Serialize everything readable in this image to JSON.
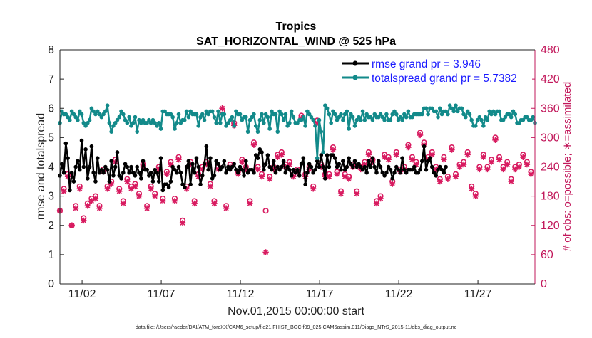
{
  "chart_data": {
    "type": "line",
    "title": "Tropics",
    "subtitle": "SAT_HORIZONTAL_WIND @ 525 hPa",
    "xlabel": "Nov.01,2015 00:00:00 start",
    "ylabel": "rmse and totalspread",
    "y2label": "# of obs: o=possible; ∗=assimilated",
    "footer": "data file: /Users/raeder/DAI/ATM_forcXX/CAM6_setup/f.e21.FHIST_BGC.f09_025.CAM6assim.011/Diags_NTrS_2015-11/obs_diag_output.nc",
    "xlim": [
      0.6,
      30.6
    ],
    "ylim": [
      0,
      8
    ],
    "y2lim": [
      0,
      480
    ],
    "xticks": [
      2,
      7,
      12,
      17,
      22,
      27
    ],
    "xtick_labels": [
      "11/02",
      "11/07",
      "11/12",
      "11/17",
      "11/22",
      "11/27"
    ],
    "yticks": [
      0,
      1,
      2,
      3,
      4,
      5,
      6,
      7,
      8
    ],
    "y2ticks": [
      0,
      60,
      120,
      180,
      240,
      300,
      360,
      420,
      480
    ],
    "legend_position": "top-right",
    "series": [
      {
        "name": "rmse grand pr = 3.946",
        "color": "#000000",
        "axis": "left",
        "x_start": 0.6,
        "x_step": 0.125,
        "values": [
          3.7,
          4.1,
          3.8,
          4.8,
          4.3,
          3.2,
          3.8,
          3.5,
          4.0,
          4.2,
          3.9,
          4.9,
          4.0,
          4.6,
          3.6,
          4.0,
          4.7,
          3.8,
          3.5,
          4.3,
          3.8,
          3.9,
          3.8,
          4.0,
          3.9,
          3.5,
          4.2,
          3.7,
          4.0,
          4.5,
          3.7,
          3.6,
          3.8,
          4.1,
          4.0,
          3.8,
          4.0,
          3.8,
          3.7,
          4.0,
          3.8,
          3.6,
          4.2,
          3.9,
          3.9,
          3.7,
          3.8,
          3.5,
          3.9,
          3.8,
          3.5,
          4.3,
          3.2,
          3.4,
          3.4,
          3.3,
          3.5,
          4.0,
          3.9,
          3.8,
          4.0,
          3.8,
          3.4,
          3.3,
          4.0,
          4.2,
          3.4,
          4.1,
          3.8,
          4.3,
          4.0,
          3.4,
          3.7,
          4.1,
          4.7,
          3.9,
          4.3,
          3.6,
          3.7,
          4.2,
          4.1,
          3.9,
          4.0,
          4.2,
          3.8,
          4.0,
          3.9,
          4.0,
          4.1,
          3.9,
          3.8,
          4.0,
          3.9,
          3.7,
          4.2,
          3.8,
          3.9,
          3.9,
          3.8,
          4.4,
          4.3,
          4.6,
          4.5,
          3.9,
          4.1,
          4.4,
          4.0,
          3.9,
          4.2,
          3.8,
          4.0,
          3.9,
          4.0,
          4.2,
          3.8,
          4.0,
          3.9,
          3.7,
          3.9,
          3.8,
          3.9,
          3.7,
          4.1,
          4.3,
          3.4,
          3.8,
          4.1,
          4.0,
          3.8,
          3.9,
          4.2,
          4.0,
          4.4,
          4.0,
          3.6,
          4.4,
          4.0,
          4.4,
          4.4,
          4.3,
          4.0,
          4.1,
          3.9,
          4.2,
          3.9,
          4.0,
          4.3,
          4.1,
          4.0,
          4.2,
          4.0,
          4.1,
          4.0,
          3.9,
          4.0,
          3.8,
          4.2,
          4.0,
          4.3,
          4.0,
          3.8,
          4.2,
          4.0,
          3.8,
          3.7,
          3.8,
          4.0,
          3.9,
          3.6,
          3.8,
          4.0,
          3.9,
          3.8,
          4.3,
          3.9,
          3.8,
          3.9,
          3.9,
          3.9,
          4.0,
          3.8,
          3.8,
          3.9,
          4.2,
          4.7,
          3.9,
          4.2,
          4.3,
          4.0,
          3.8,
          3.7,
          3.9,
          4.0,
          3.9,
          3.8,
          4.0
        ]
      },
      {
        "name": "totalspread grand pr = 5.7382",
        "color": "#128a8a",
        "axis": "left",
        "x_start": 0.6,
        "x_step": 0.125,
        "values": [
          5.5,
          5.9,
          5.8,
          5.8,
          5.7,
          5.6,
          5.9,
          5.8,
          5.7,
          5.6,
          5.9,
          5.8,
          5.5,
          5.4,
          5.5,
          5.6,
          6.0,
          5.9,
          5.8,
          5.9,
          5.8,
          5.7,
          5.8,
          5.9,
          6.1,
          5.5,
          5.2,
          5.4,
          5.5,
          5.6,
          5.7,
          5.9,
          5.8,
          5.6,
          5.5,
          5.7,
          5.4,
          5.5,
          5.7,
          5.2,
          5.6,
          5.5,
          5.6,
          5.5,
          5.5,
          5.6,
          5.5,
          5.6,
          5.5,
          5.4,
          5.5,
          5.3,
          5.9,
          5.9,
          5.8,
          5.8,
          5.8,
          5.7,
          5.3,
          5.5,
          5.8,
          5.5,
          5.6,
          5.6,
          5.9,
          5.7,
          5.9,
          5.8,
          5.8,
          5.8,
          5.4,
          5.7,
          5.8,
          5.6,
          5.9,
          5.8,
          5.9,
          5.9,
          5.7,
          5.5,
          5.9,
          5.5,
          5.8,
          5.8,
          5.4,
          5.5,
          5.6,
          5.7,
          5.4,
          5.9,
          5.8,
          5.8,
          5.6,
          5.7,
          5.7,
          5.2,
          5.6,
          5.7,
          5.8,
          5.4,
          5.2,
          5.6,
          5.8,
          5.5,
          5.8,
          5.7,
          5.3,
          5.9,
          5.8,
          5.8,
          5.2,
          5.9,
          5.8,
          5.6,
          5.8,
          5.4,
          5.5,
          5.9,
          5.7,
          5.5,
          5.5,
          5.6,
          5.6,
          5.7,
          5.4,
          5.9,
          5.8,
          5.7,
          5.6,
          5.4,
          4.3,
          5.6,
          5.2,
          4.5,
          6.1,
          6.0,
          5.8,
          5.5,
          5.9,
          5.8,
          5.6,
          5.7,
          5.8,
          5.6,
          5.8,
          5.9,
          5.3,
          5.8,
          5.7,
          5.4,
          5.6,
          5.7,
          5.6,
          5.9,
          5.6,
          5.8,
          5.7,
          5.7,
          5.6,
          5.8,
          5.7,
          5.7,
          5.8,
          5.7,
          5.6,
          5.8,
          5.6,
          5.6,
          5.8,
          5.9,
          5.8,
          5.6,
          5.7,
          5.6,
          5.8,
          5.7,
          5.9,
          5.7,
          5.7,
          5.8,
          5.8,
          5.8,
          5.8,
          5.8,
          6.0,
          6.0,
          5.8,
          6.0,
          6.0,
          5.9,
          5.9,
          5.7,
          6.0,
          5.8,
          5.9,
          5.9,
          5.8,
          6.1,
          6.0,
          5.9,
          6.1,
          5.9,
          6.0,
          6.0,
          5.8,
          5.7,
          5.9,
          5.8,
          5.6,
          5.4,
          5.4,
          5.6,
          5.7,
          5.6,
          5.4,
          5.7,
          5.6,
          5.9,
          5.8,
          5.9,
          5.8,
          5.9,
          5.9,
          5.6,
          5.6,
          5.7,
          5.8,
          5.8,
          5.7,
          5.9,
          5.8,
          5.5,
          5.5,
          5.6,
          5.6,
          5.7,
          5.7,
          5.6,
          5.6,
          5.7,
          5.5
        ]
      },
      {
        "name": "obs possible",
        "color": "#d81b60",
        "axis": "right",
        "marker": "circle",
        "x_start": 0.6,
        "x_step": 0.25,
        "values": [
          150,
          195,
          225,
          120,
          160,
          200,
          135,
          165,
          175,
          180,
          160,
          235,
          200,
          210,
          255,
          195,
          170,
          215,
          200,
          205,
          185,
          245,
          160,
          200,
          185,
          240,
          175,
          230,
          250,
          175,
          260,
          130,
          200,
          250,
          170,
          225,
          240,
          250,
          205,
          170,
          240,
          355,
          160,
          245,
          330,
          230,
          255,
          240,
          170,
          290,
          240,
          225,
          150,
          220,
          240,
          265,
          270,
          245,
          250,
          225,
          235,
          345,
          225,
          240,
          200,
          335,
          245,
          225,
          225,
          280,
          230,
          190,
          225,
          220,
          245,
          190,
          240,
          250,
          270,
          255,
          170,
          180,
          265,
          260,
          210,
          270,
          235,
          240,
          285,
          260,
          250,
          310,
          290,
          260,
          270,
          240,
          215,
          260,
          220,
          280,
          225,
          245,
          250,
          270,
          200,
          185,
          240,
          265,
          240,
          255,
          300,
          260,
          240,
          250,
          215,
          240,
          245,
          265,
          250,
          230
        ]
      },
      {
        "name": "obs assimilated",
        "color": "#d81b60",
        "axis": "right",
        "marker": "star",
        "x_start": 0.6,
        "x_step": 0.25,
        "values": [
          150,
          190,
          220,
          120,
          155,
          195,
          130,
          160,
          170,
          175,
          155,
          230,
          195,
          205,
          250,
          190,
          165,
          210,
          195,
          200,
          180,
          240,
          155,
          195,
          180,
          235,
          170,
          225,
          245,
          170,
          255,
          125,
          195,
          245,
          165,
          220,
          235,
          245,
          200,
          165,
          235,
          360,
          155,
          240,
          325,
          225,
          250,
          235,
          165,
          285,
          235,
          220,
          65,
          215,
          235,
          260,
          265,
          240,
          245,
          220,
          230,
          340,
          220,
          235,
          195,
          330,
          240,
          220,
          220,
          275,
          225,
          185,
          220,
          215,
          240,
          185,
          235,
          245,
          265,
          250,
          165,
          175,
          260,
          255,
          205,
          265,
          230,
          235,
          280,
          255,
          245,
          305,
          285,
          255,
          265,
          235,
          210,
          255,
          215,
          275,
          220,
          240,
          245,
          265,
          195,
          180,
          235,
          260,
          235,
          250,
          295,
          255,
          235,
          245,
          210,
          235,
          240,
          260,
          245,
          225
        ]
      }
    ]
  }
}
